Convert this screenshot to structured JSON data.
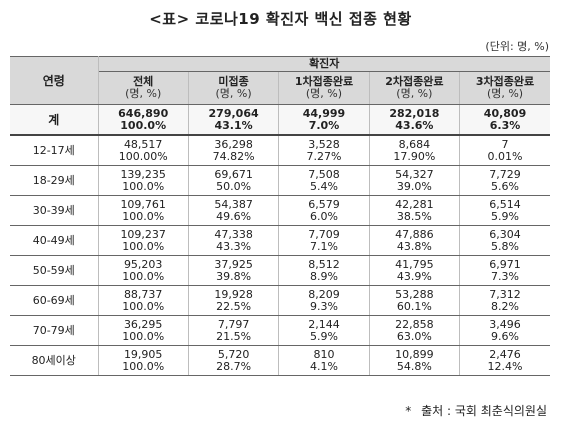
{
  "title": "<표> 코로나19 확진자 백신 접종 현황",
  "unit_note": "(단위: 명, %)",
  "header": {
    "age": "연령",
    "group": "확진자",
    "columns": [
      {
        "label": "전체",
        "sub": "(명, %)"
      },
      {
        "label": "미접종",
        "sub": "(명, %)"
      },
      {
        "label": "1차접종완료",
        "sub": "(명, %)"
      },
      {
        "label": "2차접종완료",
        "sub": "(명, %)"
      },
      {
        "label": "3차접종완료",
        "sub": "(명, %)"
      }
    ]
  },
  "rows": [
    {
      "age": "계",
      "cells": [
        {
          "count": "646,890",
          "pct": "100.0%"
        },
        {
          "count": "279,064",
          "pct": "43.1%"
        },
        {
          "count": "44,999",
          "pct": "7.0%"
        },
        {
          "count": "282,018",
          "pct": "43.6%"
        },
        {
          "count": "40,809",
          "pct": "6.3%"
        }
      ]
    },
    {
      "age": "12-17세",
      "cells": [
        {
          "count": "48,517",
          "pct": "100.00%"
        },
        {
          "count": "36,298",
          "pct": "74.82%"
        },
        {
          "count": "3,528",
          "pct": "7.27%"
        },
        {
          "count": "8,684",
          "pct": "17.90%"
        },
        {
          "count": "7",
          "pct": "0.01%"
        }
      ]
    },
    {
      "age": "18-29세",
      "cells": [
        {
          "count": "139,235",
          "pct": "100.0%"
        },
        {
          "count": "69,671",
          "pct": "50.0%"
        },
        {
          "count": "7,508",
          "pct": "5.4%"
        },
        {
          "count": "54,327",
          "pct": "39.0%"
        },
        {
          "count": "7,729",
          "pct": "5.6%"
        }
      ]
    },
    {
      "age": "30-39세",
      "cells": [
        {
          "count": "109,761",
          "pct": "100.0%"
        },
        {
          "count": "54,387",
          "pct": "49.6%"
        },
        {
          "count": "6,579",
          "pct": "6.0%"
        },
        {
          "count": "42,281",
          "pct": "38.5%"
        },
        {
          "count": "6,514",
          "pct": "5.9%"
        }
      ]
    },
    {
      "age": "40-49세",
      "cells": [
        {
          "count": "109,237",
          "pct": "100.0%"
        },
        {
          "count": "47,338",
          "pct": "43.3%"
        },
        {
          "count": "7,709",
          "pct": "7.1%"
        },
        {
          "count": "47,886",
          "pct": "43.8%"
        },
        {
          "count": "6,304",
          "pct": "5.8%"
        }
      ]
    },
    {
      "age": "50-59세",
      "cells": [
        {
          "count": "95,203",
          "pct": "100.0%"
        },
        {
          "count": "37,925",
          "pct": "39.8%"
        },
        {
          "count": "8,512",
          "pct": "8.9%"
        },
        {
          "count": "41,795",
          "pct": "43.9%"
        },
        {
          "count": "6,971",
          "pct": "7.3%"
        }
      ]
    },
    {
      "age": "60-69세",
      "cells": [
        {
          "count": "88,737",
          "pct": "100.0%"
        },
        {
          "count": "19,928",
          "pct": "22.5%"
        },
        {
          "count": "8,209",
          "pct": "9.3%"
        },
        {
          "count": "53,288",
          "pct": "60.1%"
        },
        {
          "count": "7,312",
          "pct": "8.2%"
        }
      ]
    },
    {
      "age": "70-79세",
      "cells": [
        {
          "count": "36,295",
          "pct": "100.0%"
        },
        {
          "count": "7,797",
          "pct": "21.5%"
        },
        {
          "count": "2,144",
          "pct": "5.9%"
        },
        {
          "count": "22,858",
          "pct": "63.0%"
        },
        {
          "count": "3,496",
          "pct": "9.6%"
        }
      ]
    },
    {
      "age": "80세이상",
      "cells": [
        {
          "count": "19,905",
          "pct": "100.0%"
        },
        {
          "count": "5,720",
          "pct": "28.7%"
        },
        {
          "count": "810",
          "pct": "4.1%"
        },
        {
          "count": "10,899",
          "pct": "54.8%"
        },
        {
          "count": "2,476",
          "pct": "12.4%"
        }
      ]
    }
  ],
  "source": {
    "marker": "*",
    "text": "출처 : 국회 최춘식의원실"
  }
}
